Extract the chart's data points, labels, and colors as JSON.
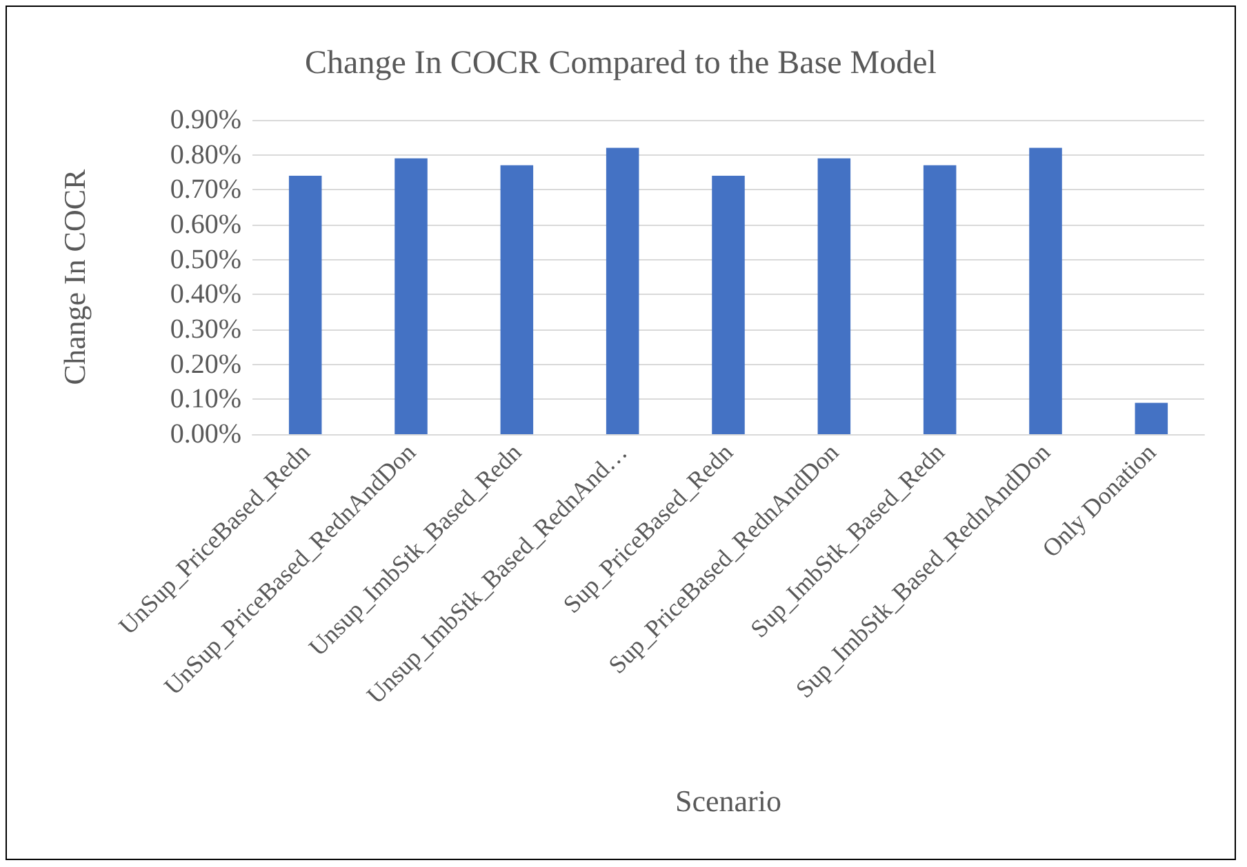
{
  "chart_data": {
    "type": "bar",
    "title": "Change In COCR Compared to the Base Model",
    "xlabel": "Scenario",
    "ylabel": "Change In COCR",
    "categories": [
      "UnSup_PriceBased_Redn",
      "UnSup_PriceBased_RednAndDon",
      "Unsup_ImbStk_Based_Redn",
      "Unsup_ImbStk_Based_RednAnd…",
      "Sup_PriceBased_Redn",
      "Sup_PriceBased_RednAndDon",
      "Sup_ImbStk_Based_Redn",
      "Sup_ImbStk_Based_RednAndDon",
      "Only Donation"
    ],
    "values": [
      0.74,
      0.79,
      0.77,
      0.82,
      0.74,
      0.79,
      0.77,
      0.82,
      0.09
    ],
    "color": "#4472c4",
    "ylim": [
      0,
      0.9
    ],
    "yticks": [
      {
        "value": 0,
        "label": "0.00%"
      },
      {
        "value": 0.1,
        "label": "0.10%"
      },
      {
        "value": 0.2,
        "label": "0.20%"
      },
      {
        "value": 0.3,
        "label": "0.30%"
      },
      {
        "value": 0.4,
        "label": "0.40%"
      },
      {
        "value": 0.5,
        "label": "0.50%"
      },
      {
        "value": 0.6,
        "label": "0.60%"
      },
      {
        "value": 0.7,
        "label": "0.70%"
      },
      {
        "value": 0.8,
        "label": "0.80%"
      },
      {
        "value": 0.9,
        "label": "0.90%"
      }
    ],
    "grid": "y"
  }
}
